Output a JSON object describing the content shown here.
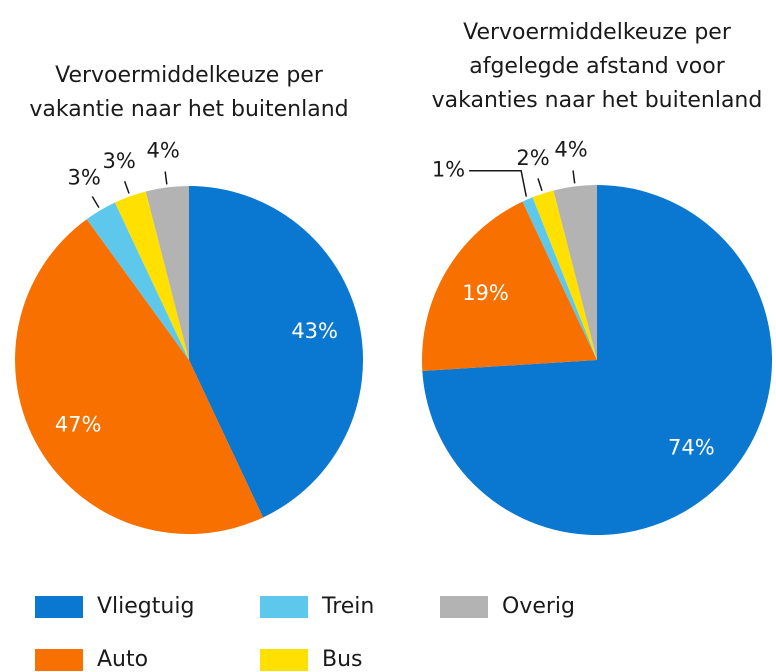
{
  "chart_data": [
    {
      "type": "pie",
      "title": [
        "Vervoermiddelkeuze per",
        "vakantie naar het buitenland"
      ],
      "categories": [
        "Vliegtuig",
        "Auto",
        "Trein",
        "Bus",
        "Overig"
      ],
      "values": [
        43,
        47,
        3,
        3,
        4
      ],
      "value_labels": [
        "43%",
        "47%",
        "3%",
        "3%",
        "4%"
      ],
      "colors": [
        "#0a77d0",
        "#f77000",
        "#5ec8ec",
        "#ffe000",
        "#b3b3b3"
      ]
    },
    {
      "type": "pie",
      "title": [
        "Vervoermiddelkeuze per",
        "afgelegde afstand voor",
        "vakanties naar het buitenland"
      ],
      "categories": [
        "Vliegtuig",
        "Auto",
        "Trein",
        "Bus",
        "Overig"
      ],
      "values": [
        74,
        19,
        1,
        2,
        4
      ],
      "value_labels": [
        "74%",
        "19%",
        "1%",
        "2%",
        "4%"
      ],
      "colors": [
        "#0a77d0",
        "#f77000",
        "#5ec8ec",
        "#ffe000",
        "#b3b3b3"
      ]
    }
  ]
}
